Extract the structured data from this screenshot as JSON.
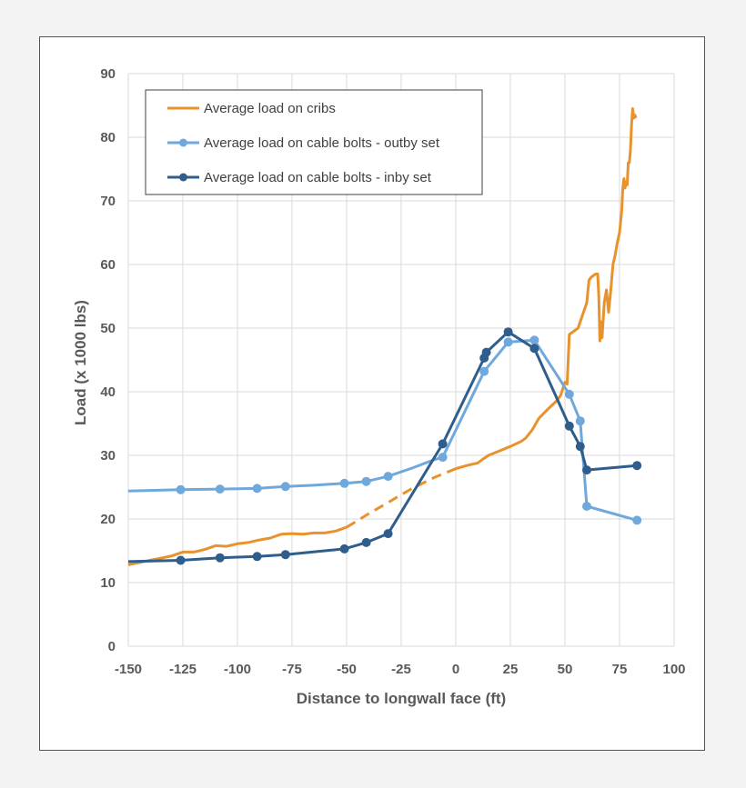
{
  "chart_data": {
    "type": "line",
    "xlabel": "Distance to longwall face (ft)",
    "ylabel": "Load (x 1000 lbs)",
    "xlim": [
      -150,
      100
    ],
    "ylim": [
      0,
      90
    ],
    "x_ticks": [
      "-150",
      "-125",
      "-100",
      "-75",
      "-50",
      "-25",
      "0",
      "25",
      "50",
      "75",
      "100"
    ],
    "y_ticks": [
      "0",
      "10",
      "20",
      "30",
      "40",
      "50",
      "60",
      "70",
      "80",
      "90"
    ],
    "grid": true,
    "legend_position": "top-left",
    "series": [
      {
        "name": "Average load on cribs",
        "color": "#e8922d",
        "markers": false,
        "segments": [
          {
            "style": "solid",
            "points": [
              [
                -150,
                12.8
              ],
              [
                -140,
                13.5
              ],
              [
                -130,
                14.2
              ],
              [
                -125,
                14.8
              ],
              [
                -120,
                14.8
              ],
              [
                -115,
                15.2
              ],
              [
                -110,
                15.8
              ],
              [
                -105,
                15.7
              ],
              [
                -100,
                16.1
              ],
              [
                -95,
                16.3
              ],
              [
                -90,
                16.7
              ],
              [
                -85,
                17.0
              ],
              [
                -80,
                17.6
              ],
              [
                -75,
                17.7
              ],
              [
                -70,
                17.6
              ],
              [
                -65,
                17.8
              ],
              [
                -60,
                17.8
              ],
              [
                -55,
                18.1
              ],
              [
                -50,
                18.7
              ]
            ]
          },
          {
            "style": "dashed",
            "points": [
              [
                -50,
                18.7
              ],
              [
                -40,
                20.8
              ],
              [
                -30,
                22.8
              ],
              [
                -20,
                24.8
              ],
              [
                -10,
                26.5
              ],
              [
                0,
                27.9
              ]
            ]
          },
          {
            "style": "solid",
            "points": [
              [
                0,
                27.9
              ],
              [
                5,
                28.4
              ],
              [
                10,
                28.8
              ],
              [
                12,
                29.3
              ],
              [
                15,
                30.0
              ],
              [
                20,
                30.7
              ],
              [
                25,
                31.4
              ],
              [
                30,
                32.2
              ],
              [
                32,
                32.7
              ],
              [
                35,
                34.0
              ],
              [
                38,
                35.8
              ],
              [
                42,
                37.2
              ],
              [
                46,
                38.5
              ],
              [
                48,
                39.4
              ],
              [
                50,
                41.5
              ],
              [
                51,
                41.2
              ],
              [
                52,
                49.0
              ],
              [
                54,
                49.5
              ],
              [
                56,
                50.0
              ],
              [
                57,
                51.0
              ],
              [
                58,
                52.0
              ],
              [
                59,
                53.0
              ],
              [
                60,
                54.0
              ],
              [
                61,
                57.5
              ],
              [
                62,
                58.0
              ],
              [
                64,
                58.5
              ],
              [
                65,
                58.5
              ],
              [
                65.5,
                55.0
              ],
              [
                66,
                48.0
              ],
              [
                66.5,
                51.0
              ],
              [
                67,
                48.5
              ],
              [
                68,
                54.0
              ],
              [
                69,
                56.0
              ],
              [
                70,
                52.5
              ],
              [
                71,
                56.0
              ],
              [
                72,
                60.0
              ],
              [
                73,
                61.5
              ],
              [
                74,
                63.5
              ],
              [
                75,
                65.0
              ],
              [
                76,
                68.5
              ],
              [
                76.5,
                72.0
              ],
              [
                77,
                73.5
              ],
              [
                77.5,
                72.0
              ],
              [
                78,
                73.0
              ],
              [
                78.5,
                72.5
              ],
              [
                79,
                76.0
              ],
              [
                79.5,
                76.0
              ],
              [
                80,
                78.0
              ],
              [
                80.5,
                82.0
              ],
              [
                81,
                84.5
              ],
              [
                81.5,
                83.0
              ],
              [
                82,
                83.5
              ],
              [
                82.5,
                83.0
              ]
            ]
          }
        ]
      },
      {
        "name": "Average load on cable bolts - outby set",
        "color": "#6fa8dc",
        "markers": true,
        "line": [
          [
            -150,
            24.4
          ],
          [
            -126,
            24.6
          ],
          [
            -108,
            24.7
          ],
          [
            -91,
            24.8
          ],
          [
            -78,
            25.1
          ],
          [
            -65,
            25.3
          ],
          [
            -51,
            25.6
          ],
          [
            -41,
            25.9
          ],
          [
            -31,
            26.7
          ],
          [
            -20,
            28.0
          ],
          [
            -10,
            29.3
          ],
          [
            -6,
            29.7
          ],
          [
            13,
            43.2
          ],
          [
            24,
            47.8
          ],
          [
            36,
            48.1
          ],
          [
            52,
            39.6
          ],
          [
            57,
            35.4
          ],
          [
            60,
            22.0
          ],
          [
            83,
            19.8
          ]
        ],
        "points": [
          [
            -126,
            24.6
          ],
          [
            -108,
            24.7
          ],
          [
            -91,
            24.8
          ],
          [
            -78,
            25.1
          ],
          [
            -51,
            25.6
          ],
          [
            -41,
            25.9
          ],
          [
            -31,
            26.7
          ],
          [
            -6,
            29.7
          ],
          [
            13,
            43.2
          ],
          [
            24,
            47.8
          ],
          [
            36,
            48.1
          ],
          [
            52,
            39.6
          ],
          [
            57,
            35.4
          ],
          [
            60,
            22.0
          ],
          [
            83,
            19.8
          ]
        ]
      },
      {
        "name": "Average load on cable bolts - inby set",
        "color": "#2f5d8c",
        "markers": true,
        "line": [
          [
            -150,
            13.3
          ],
          [
            -126,
            13.5
          ],
          [
            -108,
            13.9
          ],
          [
            -91,
            14.1
          ],
          [
            -78,
            14.4
          ],
          [
            -51,
            15.3
          ],
          [
            -41,
            16.3
          ],
          [
            -31,
            17.7
          ],
          [
            -6,
            31.8
          ],
          [
            13,
            45.3
          ],
          [
            14,
            46.2
          ],
          [
            24,
            49.4
          ],
          [
            36,
            46.8
          ],
          [
            52,
            34.6
          ],
          [
            57,
            31.4
          ],
          [
            60,
            27.7
          ],
          [
            83,
            28.4
          ]
        ],
        "points": [
          [
            -126,
            13.5
          ],
          [
            -108,
            13.9
          ],
          [
            -91,
            14.1
          ],
          [
            -78,
            14.4
          ],
          [
            -51,
            15.3
          ],
          [
            -41,
            16.3
          ],
          [
            -31,
            17.7
          ],
          [
            -6,
            31.8
          ],
          [
            13,
            45.3
          ],
          [
            14,
            46.2
          ],
          [
            24,
            49.4
          ],
          [
            36,
            46.8
          ],
          [
            52,
            34.6
          ],
          [
            57,
            31.4
          ],
          [
            60,
            27.7
          ],
          [
            83,
            28.4
          ]
        ]
      }
    ]
  }
}
